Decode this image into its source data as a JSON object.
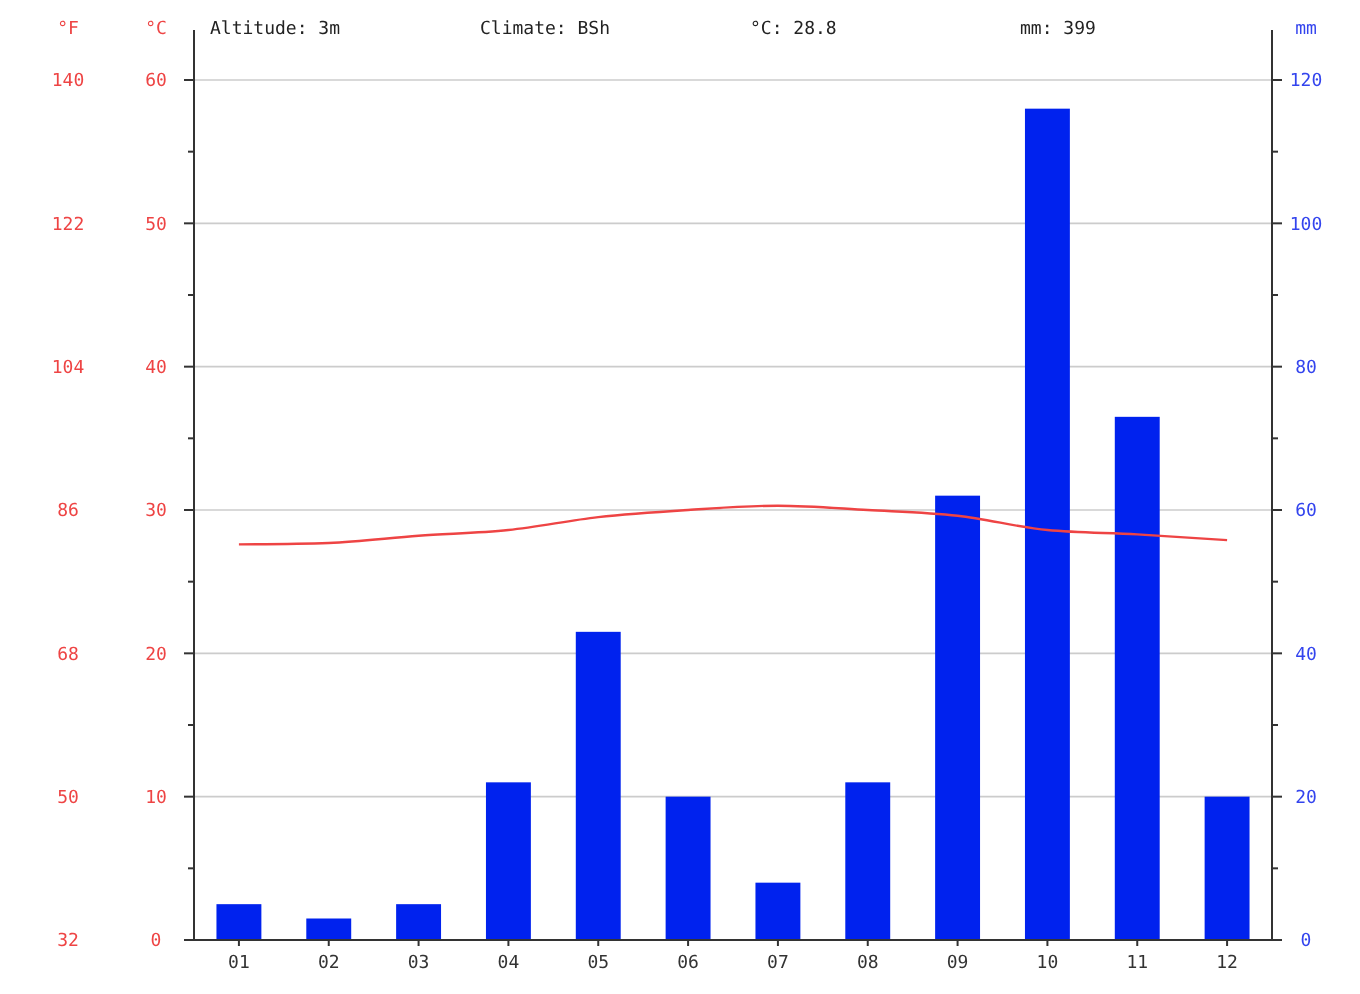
{
  "chart_data": {
    "type": "bar",
    "categories": [
      "01",
      "02",
      "03",
      "04",
      "05",
      "06",
      "07",
      "08",
      "09",
      "10",
      "11",
      "12"
    ],
    "series": [
      {
        "axis": "y2",
        "color": "#0022ee",
        "values": [
          5,
          3,
          5,
          22,
          43,
          20,
          8,
          22,
          62,
          116,
          73,
          20
        ]
      },
      {
        "type": "line",
        "axis": "y",
        "color": "#ee4444",
        "values": [
          27.6,
          27.7,
          28.2,
          28.6,
          29.5,
          30.0,
          30.3,
          30.0,
          29.6,
          28.6,
          28.3,
          27.9
        ]
      }
    ],
    "ylabel": "°C",
    "y2label": "mm",
    "y3label": "°F",
    "ylim": [
      0,
      60
    ],
    "yticks": [
      0,
      10,
      20,
      30,
      40,
      50,
      60
    ],
    "y2lim": [
      0,
      120
    ],
    "y2ticks": [
      0,
      20,
      40,
      60,
      80,
      100,
      120
    ],
    "y3lim": [
      32,
      140
    ],
    "y3ticks": [
      32,
      50,
      68,
      86,
      104,
      122,
      140
    ],
    "grid": "y",
    "marker": "none",
    "line_style": "solid",
    "annotations": [
      "Altitude: 3m",
      "Climate: BSh",
      "°C: 28.8",
      "mm: 399"
    ]
  }
}
